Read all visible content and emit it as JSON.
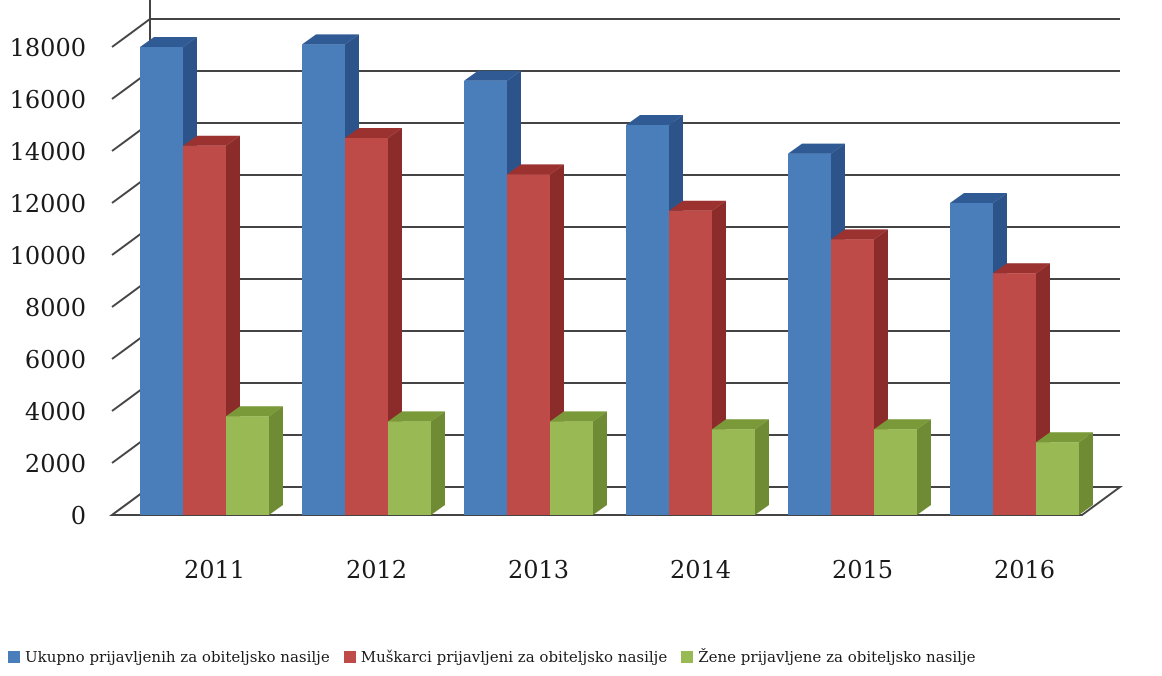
{
  "chart_data": {
    "type": "bar",
    "categories": [
      "2011",
      "2012",
      "2013",
      "2014",
      "2015",
      "2016"
    ],
    "series": [
      {
        "name": "Ukupno prijavljenih za obiteljsko nasilje",
        "values": [
          18000,
          18100,
          16700,
          15000,
          13900,
          12000
        ],
        "color": "#4a7ebb",
        "top": "#2f5a94",
        "side": "#2c548a"
      },
      {
        "name": "Muškarci prijavljeni za obiteljsko nasilje",
        "values": [
          14200,
          14500,
          13100,
          11700,
          10600,
          9300
        ],
        "color": "#be4b48",
        "top": "#9c3230",
        "side": "#8c2c2a"
      },
      {
        "name": "Žene prijavljene za obiteljsko nasilje",
        "values": [
          3800,
          3600,
          3600,
          3300,
          3300,
          2800
        ],
        "color": "#98b954",
        "top": "#7a9a3a",
        "side": "#6f8c34"
      }
    ],
    "y_ticks": [
      "0",
      "2000",
      "4000",
      "6000",
      "8000",
      "10000",
      "12000",
      "14000",
      "16000",
      "18000"
    ],
    "ylim": [
      0,
      19000
    ],
    "grid": true,
    "legend_position": "bottom",
    "three_d": true
  }
}
